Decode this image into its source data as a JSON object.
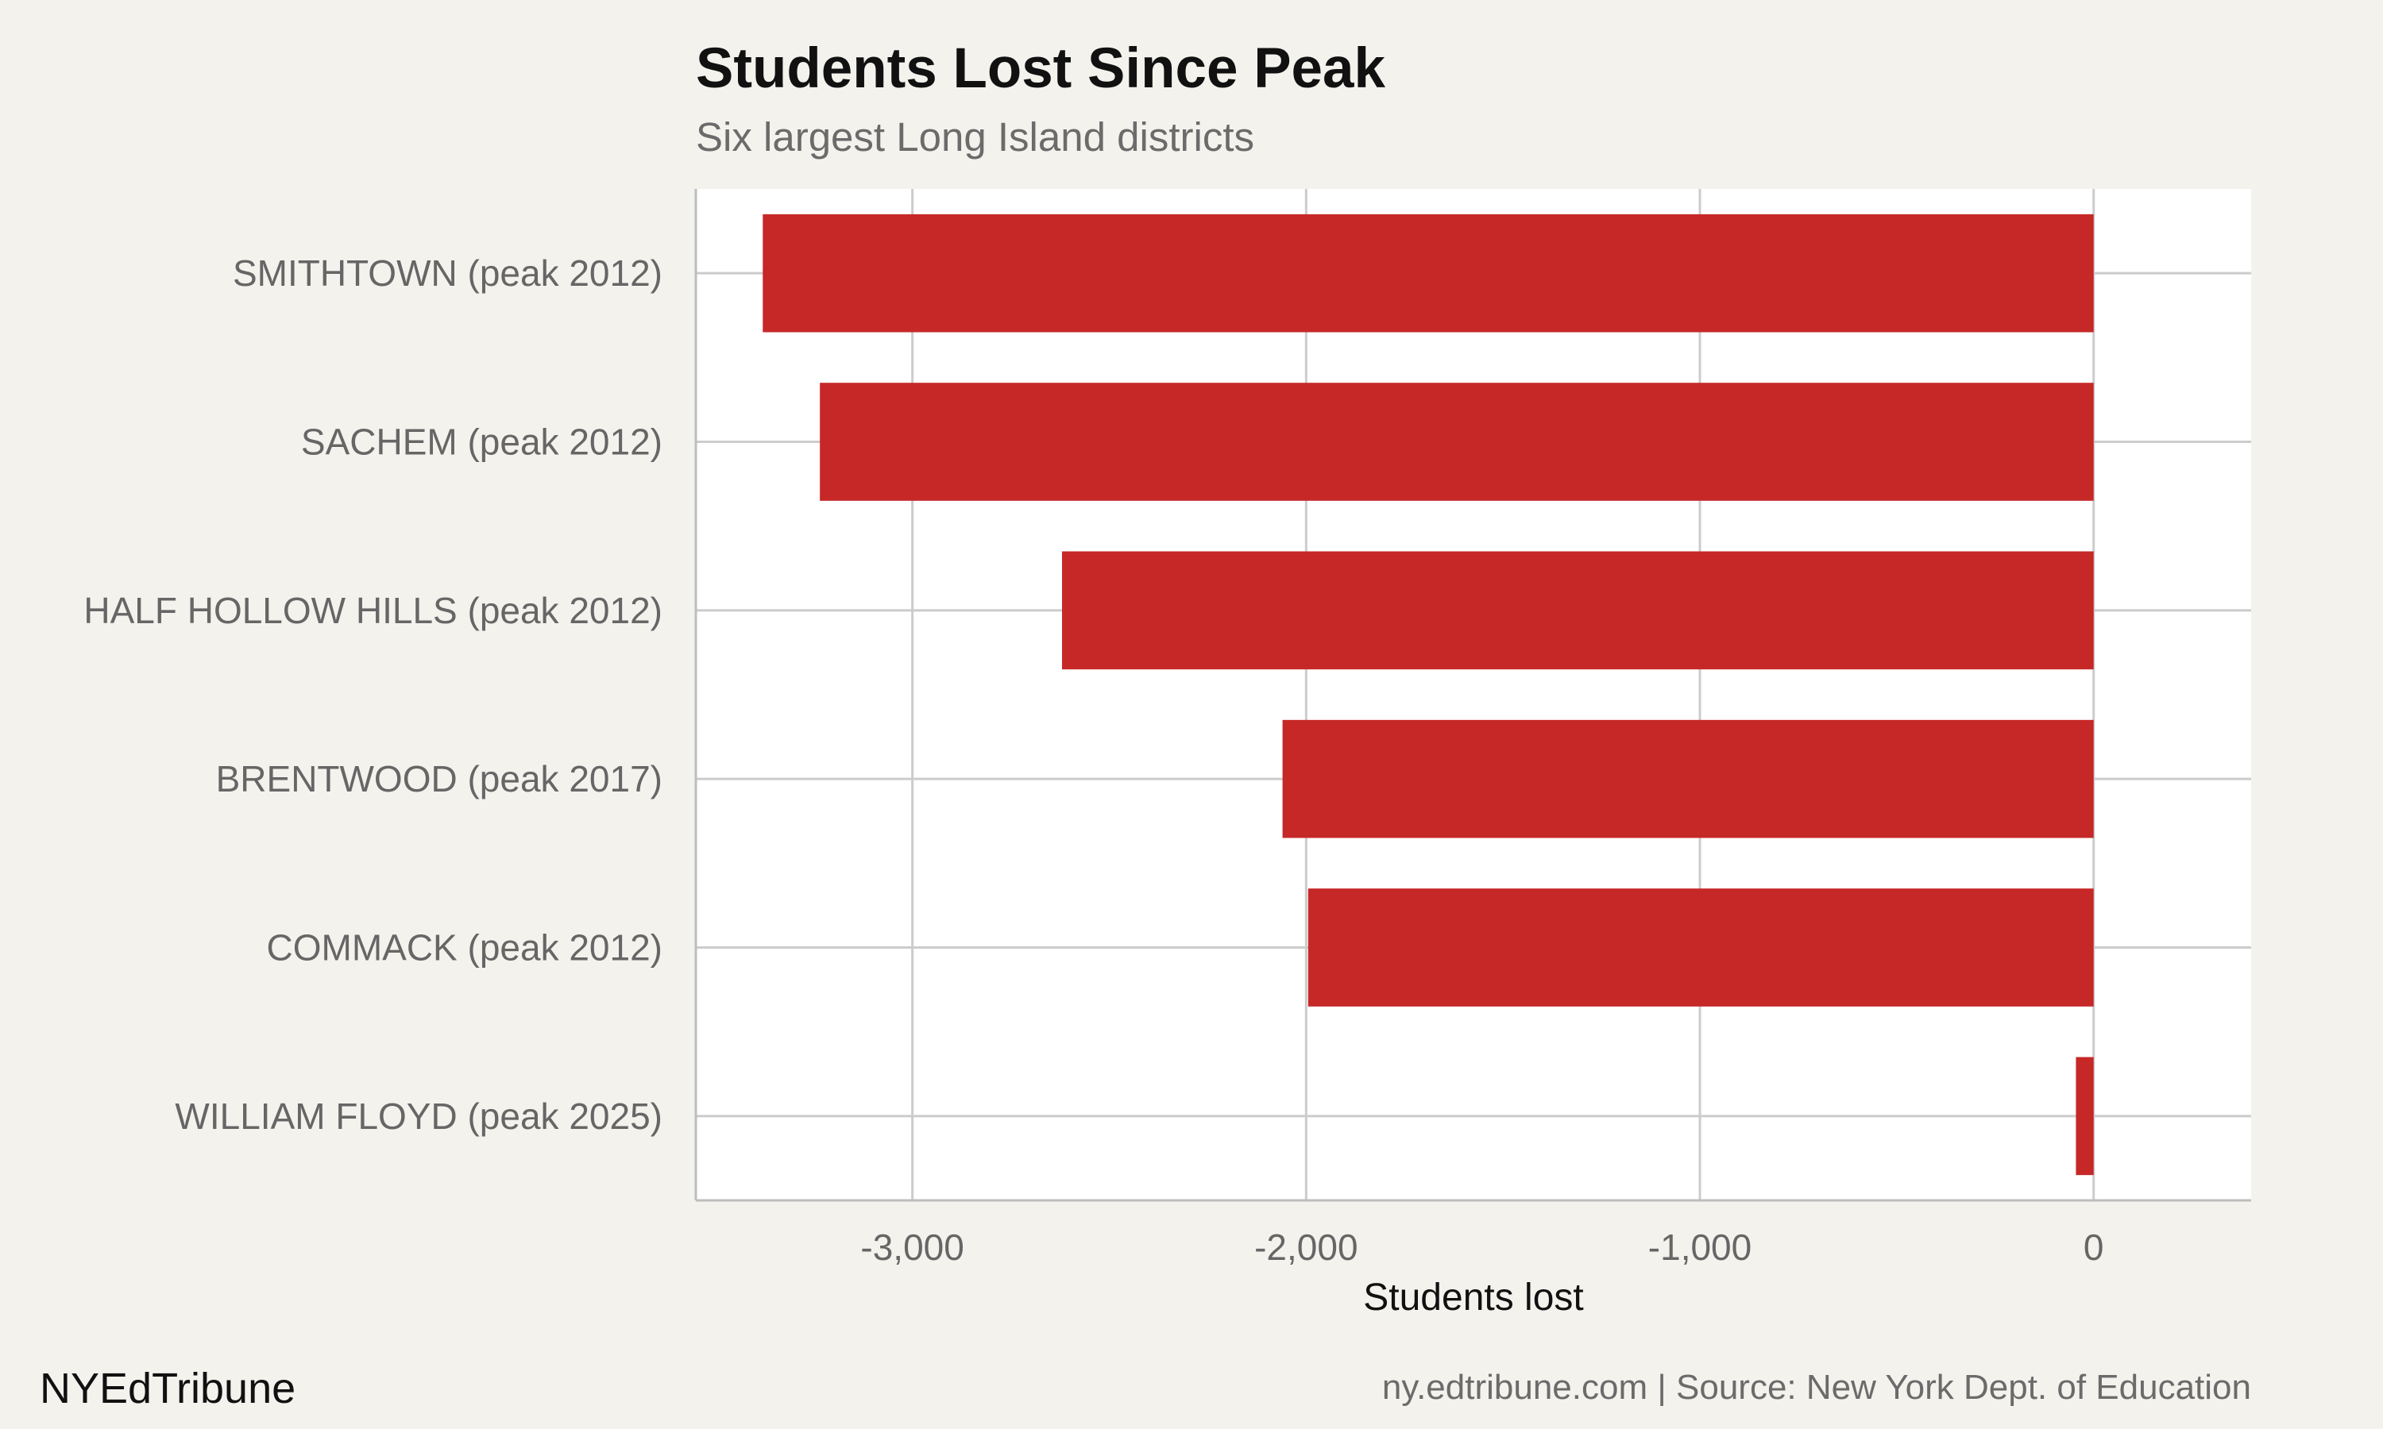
{
  "chart_data": {
    "type": "bar",
    "orientation": "horizontal",
    "title": "Students Lost Since Peak",
    "subtitle": "Six largest Long Island districts",
    "xlabel": "Students lost",
    "ylabel": "",
    "categories": [
      "SMITHTOWN (peak 2012)",
      "SACHEM (peak 2012)",
      "HALF HOLLOW HILLS (peak 2012)",
      "BRENTWOOD (peak 2017)",
      "COMMACK (peak 2012)",
      "WILLIAM FLOYD (peak 2025)"
    ],
    "values": [
      -3380,
      -3235,
      -2620,
      -2060,
      -1995,
      -45
    ],
    "xlim": [
      -3550,
      400
    ],
    "xticks": [
      -3000,
      -2000,
      -1000,
      0
    ],
    "xtick_labels": [
      "-3,000",
      "-2,000",
      "-1,000",
      "0"
    ],
    "grid": true,
    "bar_color": "#c62828"
  },
  "footer": {
    "brand": "NYEdTribune",
    "source": "ny.edtribune.com | Source: New York Dept. of Education"
  },
  "colors": {
    "background": "#f4f2ed",
    "panel": "#ffffff",
    "grid": "#cccccc",
    "bar": "#c62828"
  }
}
